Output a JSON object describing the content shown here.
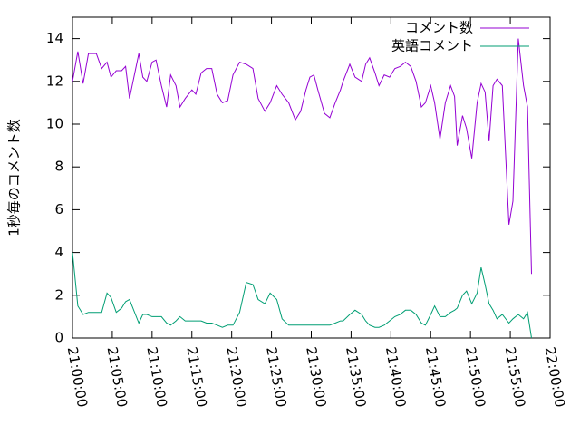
{
  "chart_data": {
    "type": "line",
    "ylabel": "1秒毎のコメント数",
    "xlim": [
      "21:00:00",
      "22:00:00"
    ],
    "xticks": [
      "21:00:00",
      "21:05:00",
      "21:10:00",
      "21:15:00",
      "21:20:00",
      "21:25:00",
      "21:30:00",
      "21:35:00",
      "21:40:00",
      "21:45:00",
      "21:50:00",
      "21:55:00",
      "22:00:00"
    ],
    "ylim": [
      0,
      15
    ],
    "yticks": [
      0,
      2,
      4,
      6,
      8,
      10,
      12,
      14
    ],
    "legend": "top-right",
    "x": [
      "21:00:00",
      "21:00:40",
      "21:01:20",
      "21:02:00",
      "21:03:00",
      "21:03:40",
      "21:04:20",
      "21:04:50",
      "21:05:30",
      "21:06:10",
      "21:06:40",
      "21:07:10",
      "21:08:20",
      "21:08:50",
      "21:09:20",
      "21:10:00",
      "21:10:30",
      "21:11:10",
      "21:11:50",
      "21:12:20",
      "21:13:00",
      "21:13:30",
      "21:14:10",
      "21:15:00",
      "21:15:30",
      "21:16:10",
      "21:16:50",
      "21:17:30",
      "21:18:10",
      "21:18:50",
      "21:19:30",
      "21:20:10",
      "21:21:00",
      "21:21:50",
      "21:22:40",
      "21:23:20",
      "21:24:10",
      "21:24:50",
      "21:25:40",
      "21:26:20",
      "21:27:10",
      "21:28:00",
      "21:28:40",
      "21:29:20",
      "21:29:50",
      "21:30:20",
      "21:30:50",
      "21:31:40",
      "21:32:20",
      "21:33:00",
      "21:33:40",
      "21:34:00",
      "21:34:50",
      "21:35:30",
      "21:36:20",
      "21:36:50",
      "21:37:20",
      "21:38:00",
      "21:38:30",
      "21:39:10",
      "21:39:50",
      "21:40:30",
      "21:41:10",
      "21:41:50",
      "21:42:30",
      "21:43:10",
      "21:43:50",
      "21:44:20",
      "21:45:00",
      "21:45:30",
      "21:46:10",
      "21:46:50",
      "21:47:30",
      "21:48:00",
      "21:48:20",
      "21:49:00",
      "21:49:30",
      "21:50:10",
      "21:50:50",
      "21:51:20",
      "21:51:50",
      "21:52:20",
      "21:52:50",
      "21:53:20",
      "21:54:00",
      "21:54:50",
      "21:55:20",
      "21:56:00",
      "21:56:40",
      "21:57:10",
      "21:57:40"
    ],
    "series": [
      {
        "name": "コメント数",
        "color": "#9400d3",
        "values": [
          12.0,
          13.4,
          11.9,
          13.3,
          13.3,
          12.6,
          12.9,
          12.2,
          12.5,
          12.5,
          12.7,
          11.2,
          13.3,
          12.2,
          12.0,
          12.9,
          13.0,
          11.8,
          10.8,
          12.3,
          11.8,
          10.8,
          11.2,
          11.6,
          11.4,
          12.4,
          12.6,
          12.6,
          11.4,
          11.0,
          11.1,
          12.3,
          12.9,
          12.8,
          12.6,
          11.2,
          10.6,
          11.0,
          11.8,
          11.4,
          11.0,
          10.2,
          10.6,
          11.6,
          12.2,
          12.3,
          11.6,
          10.5,
          10.3,
          11.0,
          11.6,
          12.0,
          12.8,
          12.2,
          12.0,
          12.8,
          13.1,
          12.4,
          11.8,
          12.3,
          12.2,
          12.6,
          12.7,
          12.9,
          12.7,
          12.0,
          10.8,
          11.0,
          11.8,
          11.0,
          9.3,
          11.0,
          11.8,
          11.3,
          9.0,
          10.4,
          9.8,
          8.4,
          11.0,
          11.9,
          11.5,
          9.2,
          11.8,
          12.1,
          11.8,
          5.3,
          6.4,
          14.0,
          11.8,
          10.8,
          3.0
        ]
      },
      {
        "name": "英語コメント",
        "color": "#009e73",
        "values": [
          4.0,
          1.5,
          1.1,
          1.2,
          1.2,
          1.2,
          2.1,
          1.9,
          1.2,
          1.4,
          1.7,
          1.8,
          0.7,
          1.1,
          1.1,
          1.0,
          1.0,
          1.0,
          0.7,
          0.6,
          0.8,
          1.0,
          0.8,
          0.8,
          0.8,
          0.8,
          0.7,
          0.7,
          0.6,
          0.5,
          0.6,
          0.6,
          1.2,
          2.6,
          2.5,
          1.8,
          1.6,
          2.1,
          1.8,
          0.9,
          0.6,
          0.6,
          0.6,
          0.6,
          0.6,
          0.6,
          0.6,
          0.6,
          0.6,
          0.7,
          0.8,
          0.8,
          1.1,
          1.3,
          1.1,
          0.8,
          0.6,
          0.5,
          0.5,
          0.6,
          0.8,
          1.0,
          1.1,
          1.3,
          1.3,
          1.1,
          0.7,
          0.6,
          1.1,
          1.5,
          1.0,
          1.0,
          1.2,
          1.3,
          1.4,
          2.0,
          2.2,
          1.6,
          2.1,
          3.3,
          2.5,
          1.6,
          1.3,
          0.9,
          1.1,
          0.7,
          0.9,
          1.1,
          0.9,
          1.2,
          0.0
        ]
      }
    ]
  }
}
